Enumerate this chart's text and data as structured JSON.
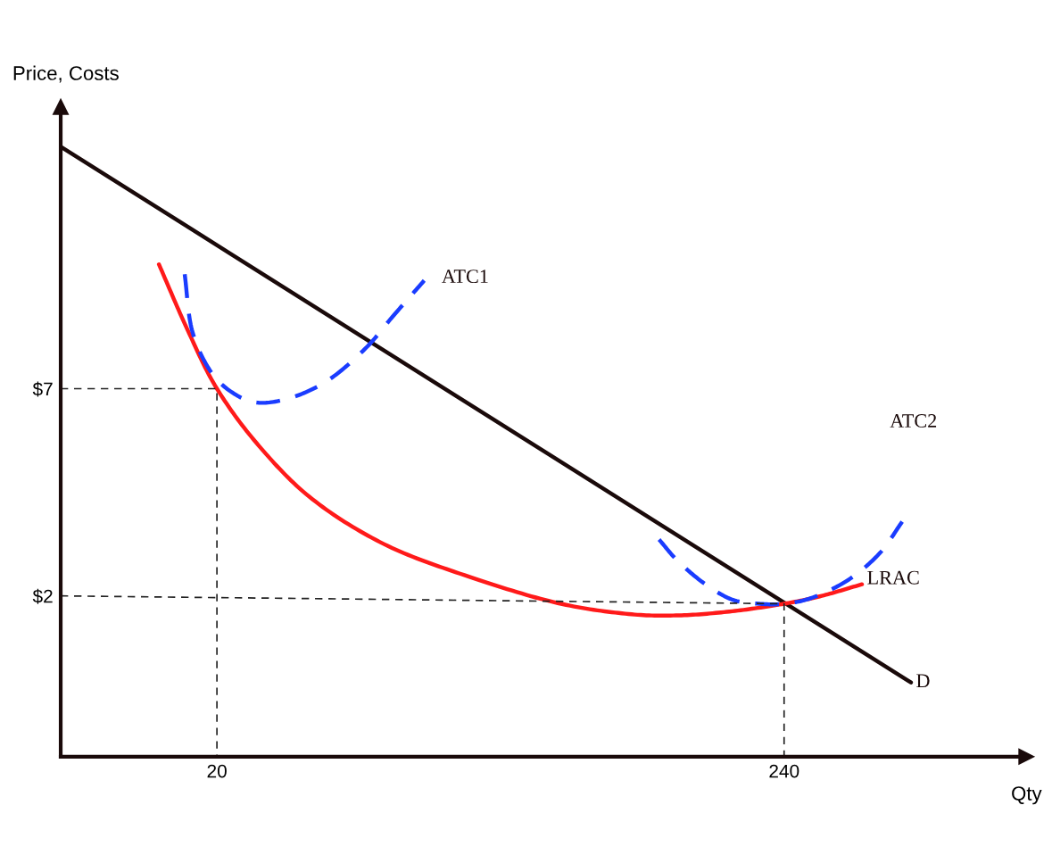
{
  "chart_data": {
    "type": "line",
    "xlabel": "Qty",
    "ylabel": "Price, Costs",
    "xlim": [
      -40.6,
      334
    ],
    "ylim": [
      -1.88,
      13.8
    ],
    "xticks": [
      20,
      240
    ],
    "yticks": [
      {
        "value": 7,
        "label": "$7"
      },
      {
        "value": 2,
        "label": "$2"
      }
    ],
    "series": [
      {
        "name": "D",
        "color": "#1a0a0a",
        "line_style": "solid",
        "x": [
          -40.6,
          289.2
        ],
        "values": [
          12.84,
          -0.09
        ]
      },
      {
        "name": "LRAC",
        "color": "#ff1a1a",
        "line_style": "solid",
        "x": [
          -2.5,
          8.6,
          20,
          36.3,
          57.1,
          84.8,
          116.0,
          150.6,
          178.4,
          199.1,
          219.9,
          240,
          254.6,
          270.2
        ],
        "values": [
          10.0,
          8.42,
          7.0,
          5.62,
          4.33,
          3.25,
          2.5,
          1.85,
          1.57,
          1.53,
          1.63,
          1.81,
          2.0,
          2.28
        ]
      },
      {
        "name": "ATC1",
        "color": "#1a3cff",
        "line_style": "dashed",
        "x": [
          7.5,
          10.3,
          17.2,
          25.9,
          36.3,
          50.1,
          64.0,
          77.9,
          88.3,
          100.4
        ],
        "values": [
          9.76,
          8.42,
          7.45,
          6.91,
          6.66,
          6.81,
          7.24,
          7.99,
          8.75,
          9.61
        ]
      },
      {
        "name": "ATC2",
        "color": "#1a3cff",
        "line_style": "dashed",
        "x": [
          191.5,
          199.1,
          209.5,
          219.9,
          230.3,
          240,
          251.1,
          265.0,
          277.1,
          285.8
        ],
        "values": [
          3.36,
          2.82,
          2.28,
          1.91,
          1.81,
          1.81,
          1.96,
          2.39,
          3.03,
          3.79
        ]
      },
      {
        "color": "#222222",
        "line_style": "dotted",
        "x": [
          -40.6,
          20,
          20
        ],
        "values": [
          7,
          7,
          -1.88
        ]
      },
      {
        "color": "#222222",
        "line_style": "dotted",
        "x": [
          -40.6,
          240,
          240
        ],
        "values": [
          2,
          1.81,
          -1.88
        ]
      }
    ]
  }
}
